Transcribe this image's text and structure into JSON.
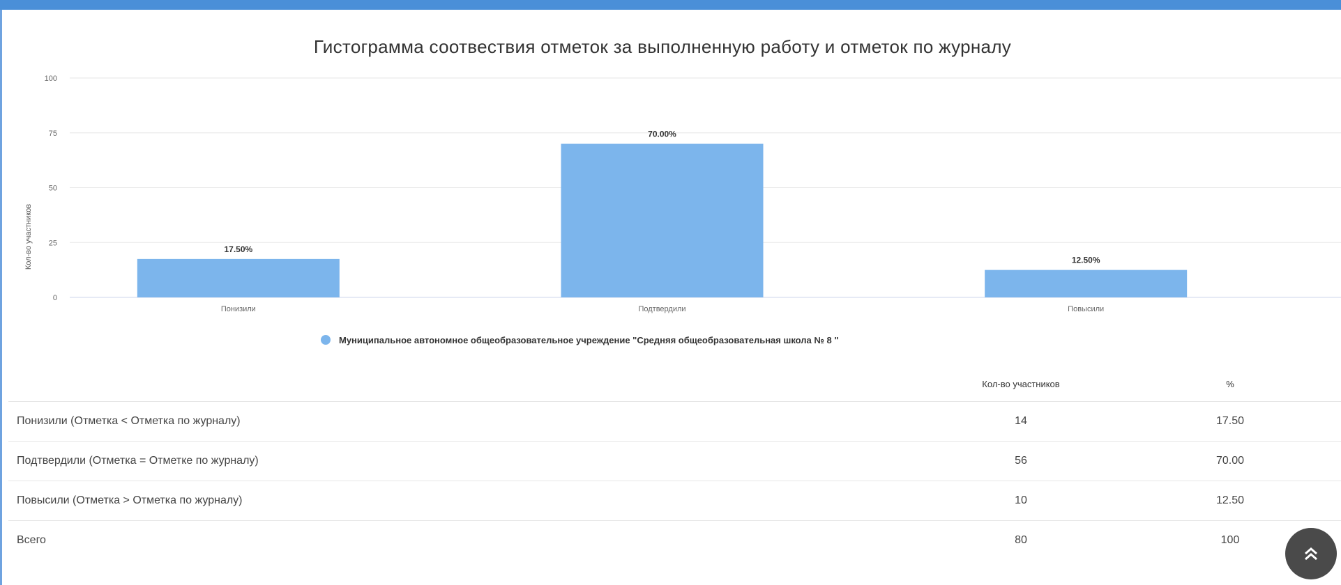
{
  "chart_data": {
    "type": "bar",
    "title": "Гистограмма соотвествия отметок за выполненную работу и отметок по журналу",
    "ylabel": "Кол-во участников",
    "xlabel": "",
    "ylim": [
      0,
      100
    ],
    "yticks": [
      "0",
      "25",
      "50",
      "75",
      "100"
    ],
    "categories": [
      "Понизили",
      "Подтвердили",
      "Повысили"
    ],
    "series": [
      {
        "name": "Муниципальное автономное общеобразовательное учреждение \"Средняя общеобразовательная школа № 8 \"",
        "values": [
          17.5,
          70.0,
          12.5
        ],
        "labels": [
          "17.50%",
          "70.00%",
          "12.50%"
        ],
        "color": "#7cb5ec"
      }
    ],
    "grid": true,
    "legend_position": "bottom"
  },
  "table": {
    "headers": {
      "name": "",
      "count": "Кол-во участников",
      "pct": "%"
    },
    "rows": [
      {
        "name": "Понизили (Отметка < Отметка по журналу)",
        "count": "14",
        "pct": "17.50"
      },
      {
        "name": "Подтвердили (Отметка = Отметке по журналу)",
        "count": "56",
        "pct": "70.00"
      },
      {
        "name": "Повысили (Отметка > Отметка по журналу)",
        "count": "10",
        "pct": "12.50"
      },
      {
        "name": "Всего",
        "count": "80",
        "pct": "100"
      }
    ]
  },
  "scroll_top_icon": "double-chevron-up-icon"
}
